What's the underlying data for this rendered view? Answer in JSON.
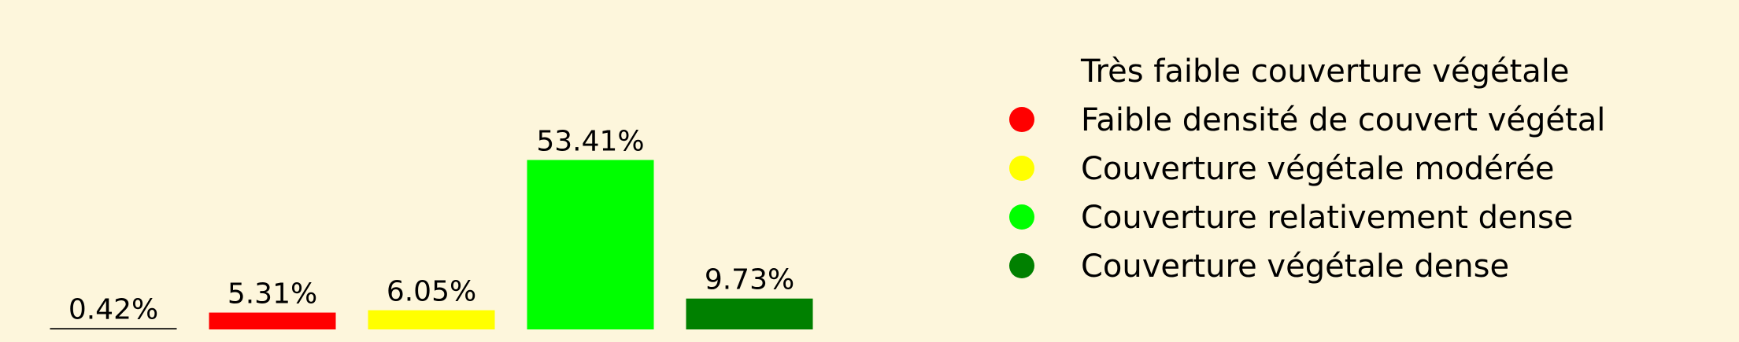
{
  "chart_data": {
    "type": "bar",
    "categories": [
      "Très faible couverture végétale",
      "Faible densité de couvert végétal",
      "Couverture végétale modérée",
      "Couverture relativement dense",
      "Couverture végétale dense"
    ],
    "values": [
      0.42,
      5.31,
      6.05,
      53.41,
      9.73
    ],
    "value_labels": [
      "0.42%",
      "5.31%",
      "6.05%",
      "53.41%",
      "9.73%"
    ],
    "colors": [
      "#000000",
      "#ff0000",
      "#ffff00",
      "#00ff00",
      "#008000"
    ],
    "legend_colors": [
      "#fdf6dc",
      "#ff0000",
      "#ffff00",
      "#00ff00",
      "#008000"
    ],
    "legend_placement": "right",
    "title": "",
    "xlabel": "",
    "ylabel": "",
    "grid": false,
    "axes_visible": false
  }
}
